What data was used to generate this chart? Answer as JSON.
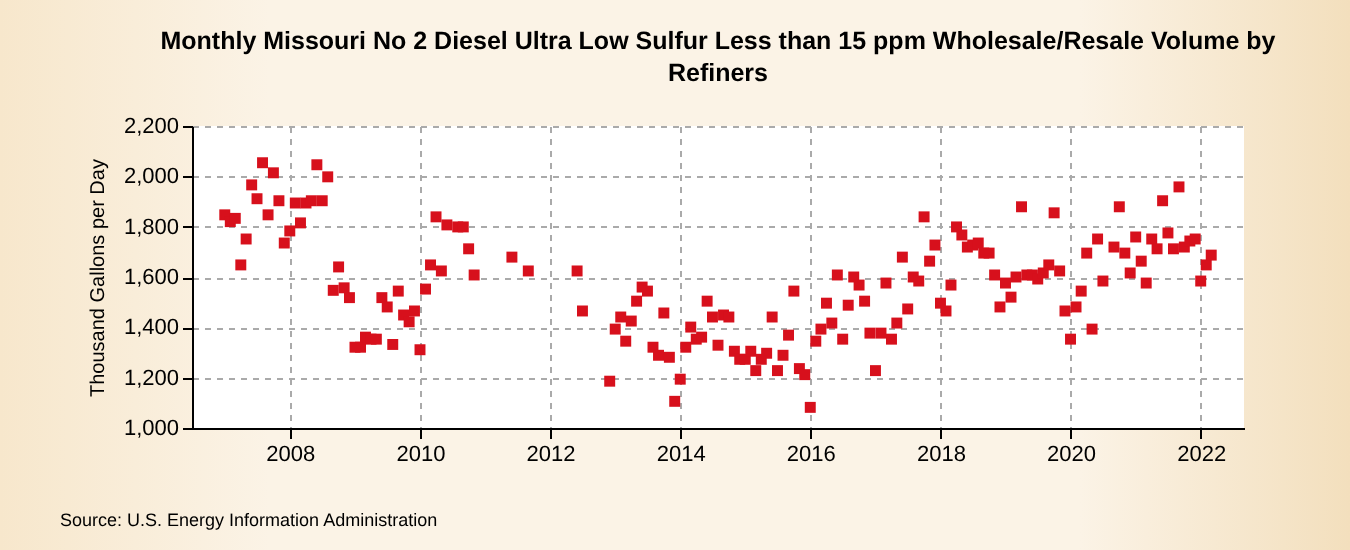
{
  "chart_data": {
    "type": "scatter",
    "title": "Monthly Missouri No 2 Diesel Ultra Low Sulfur Less than 15 ppm Wholesale/Resale Volume by Refiners",
    "ylabel": "Thousand Gallons per Day",
    "annotations": [
      "Source: U.S. Energy Information Administration"
    ],
    "x": [
      "2007-01",
      "2007-02",
      "2007-03",
      "2007-04",
      "2007-05",
      "2007-06",
      "2007-07",
      "2007-08",
      "2007-09",
      "2007-10",
      "2007-11",
      "2007-12",
      "2008-01",
      "2008-02",
      "2008-03",
      "2008-04",
      "2008-05",
      "2008-06",
      "2008-07",
      "2008-08",
      "2008-09",
      "2008-10",
      "2008-11",
      "2008-12",
      "2009-01",
      "2009-02",
      "2009-03",
      "2009-04",
      "2009-05",
      "2009-06",
      "2009-07",
      "2009-08",
      "2009-09",
      "2009-10",
      "2009-11",
      "2009-12",
      "2010-01",
      "2010-02",
      "2010-03",
      "2010-04",
      "2010-05",
      "2010-06",
      "2010-08",
      "2010-09",
      "2010-10",
      "2010-11",
      "2011-06",
      "2011-09",
      "2012-06",
      "2012-07",
      "2012-12",
      "2013-01",
      "2013-02",
      "2013-03",
      "2013-04",
      "2013-05",
      "2013-06",
      "2013-07",
      "2013-08",
      "2013-09",
      "2013-10",
      "2013-11",
      "2013-12",
      "2014-01",
      "2014-02",
      "2014-03",
      "2014-04",
      "2014-05",
      "2014-06",
      "2014-07",
      "2014-08",
      "2014-09",
      "2014-10",
      "2014-11",
      "2014-12",
      "2015-01",
      "2015-02",
      "2015-03",
      "2015-04",
      "2015-05",
      "2015-06",
      "2015-07",
      "2015-08",
      "2015-09",
      "2015-10",
      "2015-11",
      "2015-12",
      "2016-01",
      "2016-02",
      "2016-03",
      "2016-04",
      "2016-05",
      "2016-06",
      "2016-07",
      "2016-08",
      "2016-09",
      "2016-10",
      "2016-11",
      "2016-12",
      "2017-01",
      "2017-02",
      "2017-03",
      "2017-04",
      "2017-05",
      "2017-06",
      "2017-07",
      "2017-08",
      "2017-09",
      "2017-10",
      "2017-11",
      "2017-12",
      "2018-01",
      "2018-02",
      "2018-03",
      "2018-04",
      "2018-05",
      "2018-06",
      "2018-07",
      "2018-08",
      "2018-09",
      "2018-10",
      "2018-11",
      "2018-12",
      "2019-01",
      "2019-02",
      "2019-03",
      "2019-04",
      "2019-05",
      "2019-06",
      "2019-07",
      "2019-08",
      "2019-09",
      "2019-10",
      "2019-11",
      "2019-12",
      "2020-01",
      "2020-02",
      "2020-03",
      "2020-04",
      "2020-05",
      "2020-06",
      "2020-07",
      "2020-09",
      "2020-10",
      "2020-11",
      "2020-12",
      "2021-01",
      "2021-02",
      "2021-03",
      "2021-04",
      "2021-05",
      "2021-06",
      "2021-07",
      "2021-08",
      "2021-09",
      "2021-10",
      "2021-11",
      "2021-12",
      "2022-01",
      "2022-02",
      "2022-03"
    ],
    "series": [
      {
        "color": "#d7101c",
        "values": [
          1847,
          1820,
          1833,
          1648,
          1751,
          1966,
          1911,
          2054,
          1847,
          2014,
          1903,
          1735,
          1783,
          1894,
          1815,
          1894,
          1903,
          2046,
          1903,
          1998,
          1547,
          1640,
          1557,
          1518,
          1321,
          1321,
          1361,
          1353,
          1353,
          1518,
          1481,
          1332,
          1544,
          1449,
          1422,
          1465,
          1311,
          1552,
          1648,
          1839,
          1624,
          1807,
          1799,
          1799,
          1712,
          1608,
          1679,
          1624,
          1624,
          1465,
          1186,
          1393,
          1441,
          1345,
          1425,
          1504,
          1560,
          1544,
          1321,
          1289,
          1457,
          1281,
          1106,
          1194,
          1321,
          1401,
          1353,
          1361,
          1504,
          1441,
          1329,
          1449,
          1441,
          1305,
          1273,
          1273,
          1305,
          1228,
          1273,
          1297,
          1441,
          1228,
          1289,
          1369,
          1544,
          1236,
          1212,
          1082,
          1345,
          1393,
          1496,
          1417,
          1608,
          1353,
          1488,
          1600,
          1568,
          1504,
          1377,
          1228,
          1377,
          1576,
          1353,
          1417,
          1679,
          1473,
          1600,
          1584,
          1839,
          1663,
          1727,
          1496,
          1465,
          1568,
          1799,
          1767,
          1719,
          1727,
          1735,
          1695,
          1695,
          1608,
          1481,
          1576,
          1520,
          1600,
          1879,
          1608,
          1608,
          1592,
          1616,
          1648,
          1855,
          1624,
          1465,
          1353,
          1481,
          1544,
          1695,
          1393,
          1751,
          1584,
          1719,
          1879,
          1695,
          1616,
          1759,
          1663,
          1576,
          1751,
          1712,
          1903,
          1775,
          1712,
          1958,
          1719,
          1743,
          1751,
          1584,
          1648,
          1687
        ]
      }
    ],
    "xlim": [
      "2006-07-01",
      "2022-09-01"
    ],
    "xticks": [
      {
        "value": "2008",
        "label": "2008"
      },
      {
        "value": "2010",
        "label": "2010"
      },
      {
        "value": "2012",
        "label": "2012"
      },
      {
        "value": "2014",
        "label": "2014"
      },
      {
        "value": "2016",
        "label": "2016"
      },
      {
        "value": "2018",
        "label": "2018"
      },
      {
        "value": "2020",
        "label": "2020"
      },
      {
        "value": "2022",
        "label": "2022"
      }
    ],
    "ylim": [
      1000,
      2200
    ],
    "yticks": [
      {
        "value": 1000,
        "label": "1,000"
      },
      {
        "value": 1200,
        "label": "1,200"
      },
      {
        "value": 1400,
        "label": "1,400"
      },
      {
        "value": 1600,
        "label": "1,600"
      },
      {
        "value": 1800,
        "label": "1,800"
      },
      {
        "value": 2000,
        "label": "2,000"
      },
      {
        "value": 2200,
        "label": "2,200"
      }
    ],
    "grid": true,
    "marker": "square"
  }
}
